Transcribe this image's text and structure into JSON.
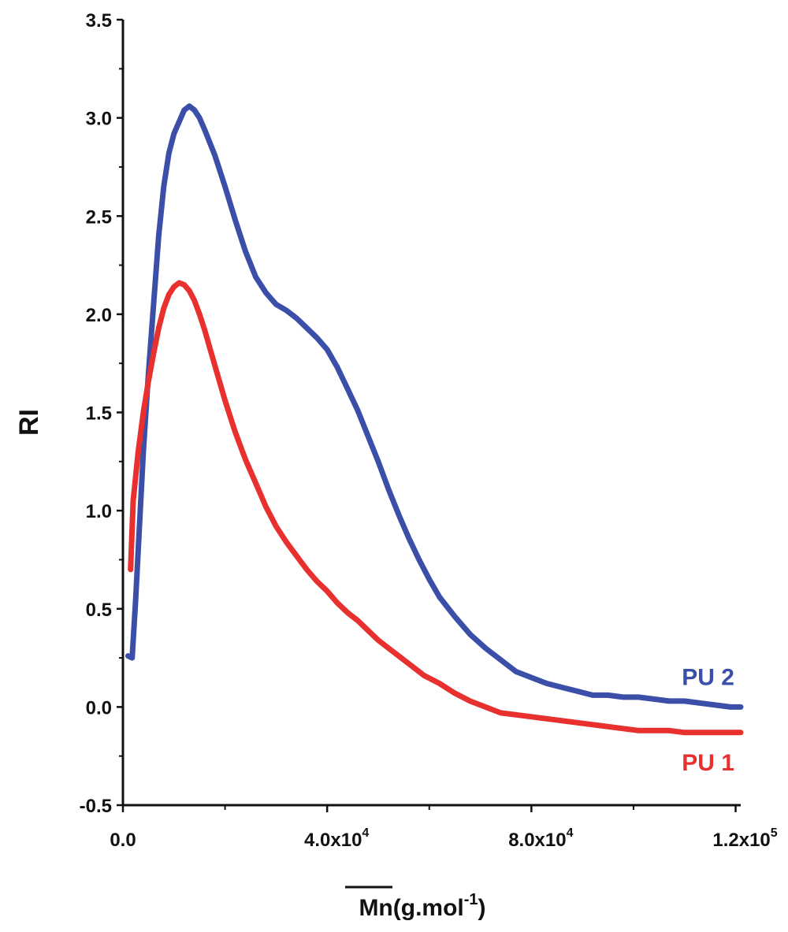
{
  "chart_data": {
    "type": "line",
    "title": "",
    "ylabel": "RI",
    "xlabel": {
      "text": "Mn(g.mol",
      "superscript": "-1",
      "close": ")",
      "overline_part": "Mn"
    },
    "xlim": [
      0,
      121000
    ],
    "ylim": [
      -0.5,
      3.5
    ],
    "x_ticks": [
      {
        "value": 0,
        "base": "0.0",
        "exp": ""
      },
      {
        "value": 40000,
        "base": "4.0x10",
        "exp": "4"
      },
      {
        "value": 80000,
        "base": "8.0x10",
        "exp": "4"
      },
      {
        "value": 120000,
        "base": "1.2x10",
        "exp": "5"
      }
    ],
    "y_ticks": [
      "-0.5",
      "0.0",
      "0.5",
      "1.0",
      "1.5",
      "2.0",
      "2.5",
      "3.0",
      "3.5"
    ],
    "grid": false,
    "legend": "inline labels at right end of each series",
    "series": [
      {
        "name": "PU 2",
        "color": "#3B4FA8",
        "x": [
          1000,
          1800,
          2500,
          3200,
          4000,
          5000,
          6000,
          7000,
          8000,
          9000,
          10000,
          11000,
          12000,
          13000,
          14000,
          15000,
          16000,
          18000,
          20000,
          22000,
          24000,
          26000,
          28000,
          30000,
          32000,
          34000,
          36000,
          38000,
          40000,
          42000,
          44000,
          46000,
          48000,
          50000,
          52000,
          54000,
          56000,
          58000,
          60000,
          62000,
          65000,
          68000,
          71000,
          74000,
          77000,
          80000,
          83000,
          86000,
          89000,
          92000,
          95000,
          98000,
          101000,
          104000,
          107000,
          110000,
          113000,
          116000,
          119000,
          121000
        ],
        "y": [
          0.26,
          0.25,
          0.55,
          0.9,
          1.3,
          1.7,
          2.05,
          2.4,
          2.65,
          2.82,
          2.92,
          2.98,
          3.04,
          3.06,
          3.04,
          3.0,
          2.94,
          2.81,
          2.65,
          2.48,
          2.32,
          2.19,
          2.11,
          2.05,
          2.02,
          1.98,
          1.93,
          1.88,
          1.82,
          1.73,
          1.62,
          1.51,
          1.38,
          1.25,
          1.11,
          0.98,
          0.86,
          0.75,
          0.65,
          0.56,
          0.46,
          0.37,
          0.3,
          0.24,
          0.18,
          0.15,
          0.12,
          0.1,
          0.08,
          0.06,
          0.06,
          0.05,
          0.05,
          0.04,
          0.03,
          0.03,
          0.02,
          0.01,
          0.0,
          0.0
        ]
      },
      {
        "name": "PU 1",
        "color": "#E8302F",
        "x": [
          1500,
          2000,
          3000,
          4000,
          5000,
          6000,
          7000,
          8000,
          9000,
          10000,
          11000,
          12000,
          13000,
          14000,
          15000,
          16000,
          18000,
          20000,
          22000,
          24000,
          26000,
          28000,
          30000,
          32000,
          34000,
          36000,
          38000,
          40000,
          42000,
          44000,
          46000,
          48000,
          50000,
          53000,
          56000,
          59000,
          62000,
          65000,
          68000,
          71000,
          74000,
          77000,
          80000,
          83000,
          86000,
          89000,
          92000,
          95000,
          98000,
          101000,
          104000,
          107000,
          110000,
          113000,
          116000,
          119000,
          121000
        ],
        "y": [
          0.7,
          1.05,
          1.3,
          1.5,
          1.66,
          1.8,
          1.93,
          2.03,
          2.1,
          2.14,
          2.16,
          2.15,
          2.12,
          2.07,
          2.0,
          1.92,
          1.74,
          1.56,
          1.4,
          1.26,
          1.14,
          1.02,
          0.92,
          0.84,
          0.77,
          0.7,
          0.64,
          0.59,
          0.53,
          0.48,
          0.44,
          0.39,
          0.34,
          0.28,
          0.22,
          0.16,
          0.12,
          0.07,
          0.03,
          0.0,
          -0.03,
          -0.04,
          -0.05,
          -0.06,
          -0.07,
          -0.08,
          -0.09,
          -0.1,
          -0.11,
          -0.12,
          -0.12,
          -0.12,
          -0.13,
          -0.13,
          -0.13,
          -0.13,
          -0.13
        ]
      }
    ]
  }
}
